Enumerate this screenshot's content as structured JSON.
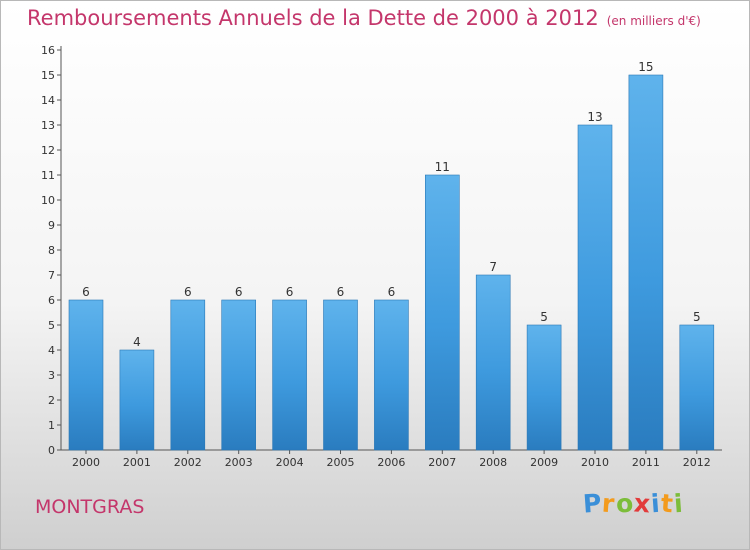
{
  "title": "Remboursements Annuels de la Dette de 2000 à 2012",
  "unit": "(en milliers d'€)",
  "place": "MONTGRAS",
  "logo": {
    "letters": [
      "P",
      "r",
      "o",
      "x",
      "i",
      "t",
      "i"
    ],
    "colors": [
      "#3a8fd8",
      "#f39b1d",
      "#7cbd3a",
      "#e23b3b",
      "#3a8fd8",
      "#f39b1d",
      "#7cbd3a"
    ]
  },
  "colors": {
    "bar": "#3d98dc",
    "bar_top": "#5cb1ea",
    "bar_dark": "#2678b8",
    "title": "#c4366b"
  },
  "chart_data": {
    "type": "bar",
    "title": "Remboursements Annuels de la Dette de 2000 à 2012",
    "categories": [
      "2000",
      "2001",
      "2002",
      "2003",
      "2004",
      "2005",
      "2006",
      "2007",
      "2008",
      "2009",
      "2010",
      "2011",
      "2012"
    ],
    "values": [
      6,
      4,
      6,
      6,
      6,
      6,
      6,
      11,
      7,
      5,
      13,
      15,
      5
    ],
    "ylim": [
      0,
      16
    ],
    "yticks": [
      0,
      1,
      2,
      3,
      4,
      5,
      6,
      7,
      8,
      9,
      10,
      11,
      12,
      13,
      14,
      15,
      16
    ],
    "grid": false,
    "legend": "none"
  }
}
